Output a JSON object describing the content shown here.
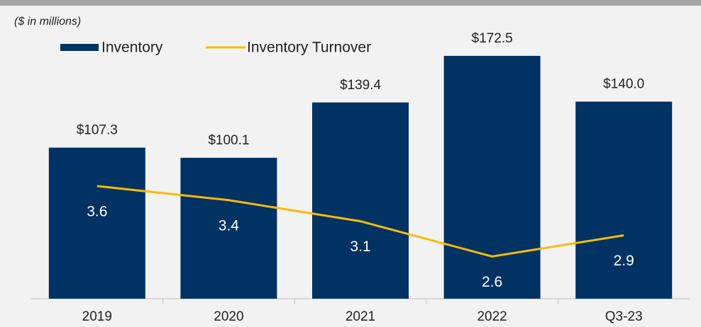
{
  "chart_data": {
    "type": "bar-line",
    "subtitle": "($ in millions)",
    "categories": [
      "2019",
      "2020",
      "2021",
      "2022",
      "Q3-23"
    ],
    "series": [
      {
        "name": "Inventory",
        "type": "bar",
        "color": "#003263",
        "values": [
          107.3,
          100.1,
          139.4,
          172.5,
          140.0
        ],
        "value_labels": [
          "$107.3",
          "$100.1",
          "$139.4",
          "$172.5",
          "$140.0"
        ]
      },
      {
        "name": "Inventory Turnover",
        "type": "line",
        "axis": "y2",
        "color": "#f8bb0a",
        "values": [
          3.6,
          3.4,
          3.1,
          2.6,
          2.9
        ],
        "value_labels": [
          "3.6",
          "3.4",
          "3.1",
          "2.6",
          "2.9"
        ]
      }
    ],
    "ylim": [
      0,
      180
    ],
    "y2lim": [
      2,
      5.6
    ]
  }
}
